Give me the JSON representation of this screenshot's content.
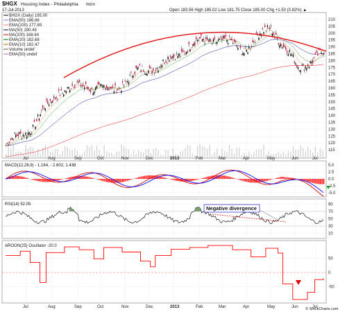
{
  "header": {
    "symbol": "$HGX",
    "name": "Housing Index - Philadelphia",
    "exchange": "INDX",
    "date": "17-Jul-2013",
    "ohlc": "Open 183.56  High 185.02  Low 181.75  Close 185.00  Chg +1.50 (0.82%) ▲",
    "watermark": "© StockCharts.com"
  },
  "chart_data": [
    {
      "type": "candlestick",
      "legend": [
        {
          "label": "$HGX (Daily) 185.00",
          "color": "#000000"
        },
        {
          "label": "EMA(50) 186.88",
          "color": "#7f7fff"
        },
        {
          "label": "EMA(200) 177.89",
          "color": "#ff7f7f"
        },
        {
          "label": "MA(50) 190.49",
          "color": "#00007f"
        },
        {
          "label": "MA(200) 168.64",
          "color": "#cc0000"
        },
        {
          "label": "EMA(20) 182.68",
          "color": "#007f00"
        },
        {
          "label": "EMA(10) 182.47",
          "color": "#cc6600"
        },
        {
          "label": "Volume undef",
          "color": "#555555"
        },
        {
          "label": "EMA(50) undef",
          "color": "#cc66cc"
        }
      ],
      "x_tick_labels": [
        "Jul",
        "Aug",
        "Sep",
        "Oct",
        "Nov",
        "Dec",
        "2013",
        "Feb",
        "Mar",
        "Apr",
        "May",
        "Jun",
        "Jul"
      ],
      "y_tick_labels": [
        "115",
        "120",
        "125",
        "130",
        "135",
        "140",
        "145",
        "150",
        "155",
        "160",
        "165",
        "170",
        "175",
        "180",
        "185",
        "190",
        "195",
        "200",
        "205",
        "210"
      ],
      "ylim": [
        112,
        212
      ],
      "x": [
        "Jul-2012",
        "Aug-2012",
        "Sep-2012",
        "Oct-2012",
        "Nov-2012",
        "Dec-2012",
        "Jan-2013",
        "Feb-2013",
        "Mar-2013",
        "Apr-2013",
        "May-2013",
        "Jun-2013",
        "Jul-2013"
      ],
      "close": [
        118,
        132,
        158,
        162,
        158,
        172,
        178,
        192,
        196,
        188,
        205,
        175,
        185
      ],
      "arc": {
        "label": "",
        "color": "#e31a1c"
      },
      "volume_color": "#d5d5d5"
    },
    {
      "type": "bar",
      "title": "MACD(12,26,9) - 1.164, - 2.602, 1.438",
      "y_tick_labels": [
        "5.0",
        "2.5",
        "0.0",
        "-2.5",
        "-5.0"
      ],
      "ylim": [
        -6,
        6
      ],
      "colors": {
        "macd": "#cc0000",
        "signal": "#0000ff",
        "hist": "#ff0000"
      }
    },
    {
      "type": "line",
      "title": "RSI(14) 52.05",
      "y_tick_labels": [
        "90",
        "70",
        "50",
        "30",
        "10"
      ],
      "ylim": [
        0,
        100
      ],
      "annotation": "Negative divergence",
      "annotation_color": "#0000cc"
    },
    {
      "type": "line",
      "title": "AROON(25) Oscillator -20.0",
      "y_tick_labels": [
        "50",
        "0",
        "-50"
      ],
      "ylim": [
        -100,
        100
      ],
      "color": "#ff0000"
    }
  ]
}
